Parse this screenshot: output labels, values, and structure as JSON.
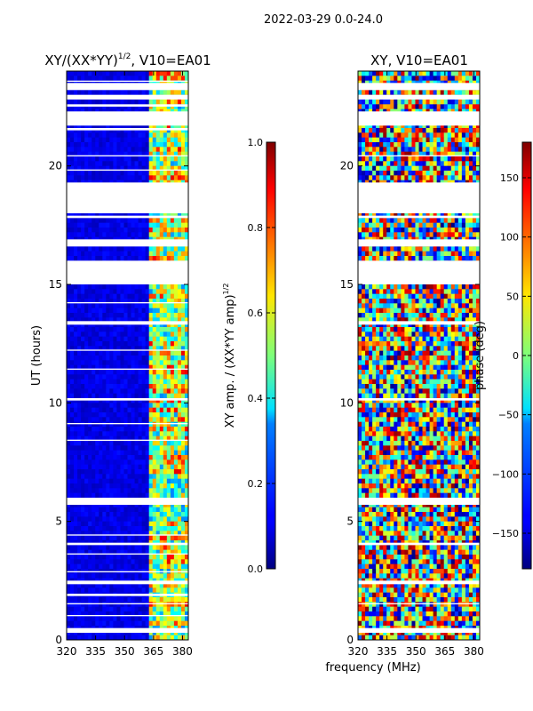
{
  "figure_title": "2022-03-29 0.0-24.0",
  "chart_data": [
    {
      "type": "heatmap",
      "title_main": "XY/(XX*YY)",
      "title_sup": "1/2",
      "title_tail": ", V10=EA01",
      "xlabel": "",
      "ylabel": "UT (hours)",
      "xlim": [
        320,
        383
      ],
      "ylim": [
        0,
        24
      ],
      "xticks": [
        "320",
        "335",
        "350",
        "365",
        "380"
      ],
      "xtick_values": [
        320,
        335,
        350,
        365,
        380
      ],
      "yticks": [
        "0",
        "5",
        "10",
        "15",
        "20"
      ],
      "ytick_values": [
        0,
        5,
        10,
        15,
        20
      ],
      "colorbar": {
        "range": [
          0.0,
          1.0
        ],
        "ticks": [
          "0.0",
          "0.2",
          "0.4",
          "0.6",
          "0.8",
          "1.0"
        ],
        "tick_values": [
          0.0,
          0.2,
          0.4,
          0.6,
          0.8,
          1.0
        ],
        "label_main": "XY amp. / (XX*YY amp)",
        "label_sup": "1/2"
      },
      "mask_gaps_hours": [
        [
          0.3,
          0.5
        ],
        [
          1.0,
          1.05
        ],
        [
          1.5,
          1.55
        ],
        [
          1.85,
          1.95
        ],
        [
          2.35,
          2.5
        ],
        [
          2.85,
          2.9
        ],
        [
          3.6,
          3.65
        ],
        [
          4.0,
          4.1
        ],
        [
          4.4,
          4.45
        ],
        [
          5.7,
          6.0
        ],
        [
          8.4,
          8.45
        ],
        [
          9.1,
          9.15
        ],
        [
          10.1,
          10.2
        ],
        [
          11.4,
          11.45
        ],
        [
          12.2,
          12.25
        ],
        [
          13.3,
          13.45
        ],
        [
          14.2,
          14.25
        ],
        [
          15.0,
          16.0
        ],
        [
          16.6,
          16.9
        ],
        [
          17.8,
          17.9
        ],
        [
          18.0,
          19.3
        ],
        [
          19.8,
          19.85
        ],
        [
          20.4,
          20.45
        ],
        [
          21.5,
          21.6
        ],
        [
          21.7,
          22.3
        ],
        [
          22.5,
          22.6
        ],
        [
          22.8,
          23.0
        ],
        [
          23.2,
          23.5
        ],
        [
          23.55,
          23.6
        ]
      ],
      "bright_band_mhz": [
        363,
        383
      ]
    },
    {
      "type": "heatmap",
      "title": "XY, V10=EA01",
      "xlabel": "frequency (MHz)",
      "ylabel": "",
      "xlim": [
        320,
        383
      ],
      "ylim": [
        0,
        24
      ],
      "xticks": [
        "320",
        "335",
        "350",
        "365",
        "380"
      ],
      "xtick_values": [
        320,
        335,
        350,
        365,
        380
      ],
      "yticks": [
        "0",
        "5",
        "10",
        "15",
        "20"
      ],
      "ytick_values": [
        0,
        5,
        10,
        15,
        20
      ],
      "colorbar": {
        "range": [
          -180,
          180
        ],
        "ticks": [
          "150",
          "100",
          "50",
          "0",
          "−50",
          "−100",
          "−150"
        ],
        "tick_values": [
          150,
          100,
          50,
          0,
          -50,
          -100,
          -150
        ],
        "label": "phase (deg)"
      },
      "mask_gaps_hours": [
        [
          0.3,
          0.5
        ],
        [
          1.5,
          1.55
        ],
        [
          2.35,
          2.5
        ],
        [
          4.0,
          4.1
        ],
        [
          5.7,
          6.0
        ],
        [
          10.1,
          10.2
        ],
        [
          13.3,
          13.45
        ],
        [
          15.0,
          16.0
        ],
        [
          16.6,
          16.9
        ],
        [
          17.8,
          17.9
        ],
        [
          18.0,
          19.3
        ],
        [
          20.4,
          20.45
        ],
        [
          21.7,
          22.3
        ],
        [
          22.8,
          23.0
        ],
        [
          23.2,
          23.5
        ]
      ]
    }
  ]
}
